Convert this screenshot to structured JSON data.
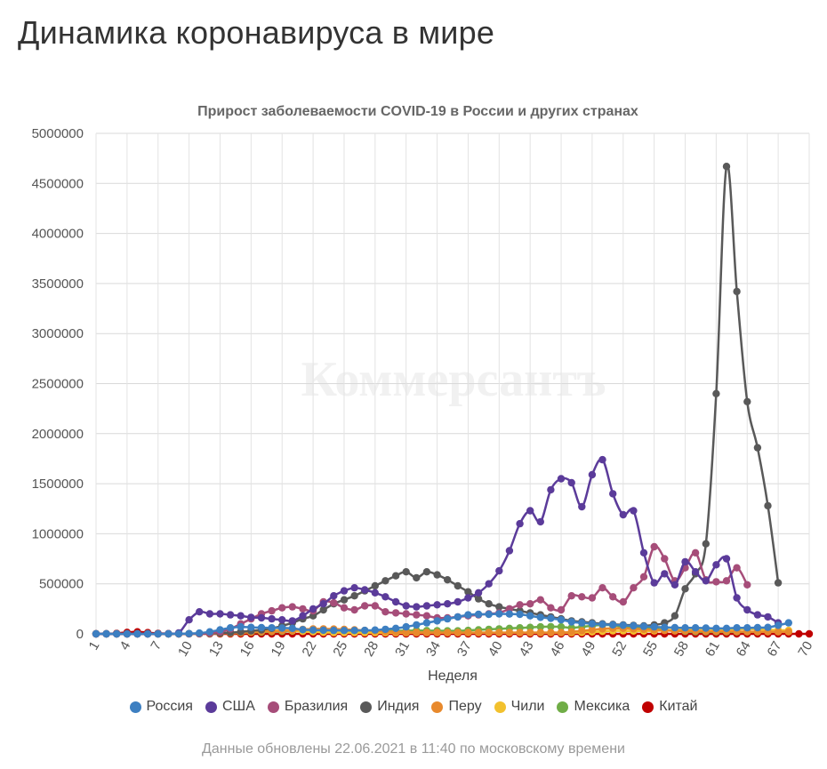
{
  "page": {
    "title": "Динамика коронавируса в мире",
    "footer": "Данные обновлены 22.06.2021 в 11:40 по московскому времени"
  },
  "watermark": "Коммерсантъ",
  "chart_data": {
    "type": "line",
    "title": "Прирост заболеваемости COVID-19 в России и других странах",
    "xlabel": "Неделя",
    "ylabel": "",
    "xlim": [
      1,
      70
    ],
    "ylim": [
      0,
      5000000
    ],
    "x_ticks": [
      1,
      4,
      7,
      10,
      13,
      16,
      19,
      22,
      25,
      28,
      31,
      34,
      37,
      40,
      43,
      46,
      49,
      52,
      55,
      58,
      61,
      64,
      67,
      70
    ],
    "y_ticks": [
      0,
      500000,
      1000000,
      1500000,
      2000000,
      2500000,
      3000000,
      3500000,
      4000000,
      4500000,
      5000000
    ],
    "grid": true,
    "legend_position": "bottom",
    "series": [
      {
        "name": "Китай",
        "color": "#c00000",
        "start": 1,
        "values": [
          0,
          1000,
          5000,
          15000,
          20000,
          12000,
          5000,
          3000,
          1500,
          800,
          500,
          400,
          300,
          300,
          200,
          200,
          200,
          200,
          200,
          200,
          200,
          200,
          200,
          200,
          200,
          200,
          200,
          200,
          200,
          200,
          200,
          200,
          200,
          200,
          200,
          200,
          200,
          200,
          200,
          200,
          200,
          200,
          200,
          200,
          200,
          200,
          200,
          200,
          200,
          200,
          200,
          200,
          200,
          200,
          200,
          200,
          200,
          200,
          200,
          200,
          200,
          200,
          200,
          200,
          200,
          200,
          200,
          200,
          200,
          200
        ]
      },
      {
        "name": "Мексика",
        "color": "#70ad47",
        "start": 1,
        "values": [
          0,
          0,
          0,
          0,
          0,
          0,
          0,
          0,
          0,
          500,
          1500,
          3000,
          6000,
          9000,
          12000,
          15000,
          18000,
          22000,
          25000,
          28000,
          30000,
          32000,
          34000,
          36000,
          36000,
          35000,
          33000,
          32000,
          30000,
          30000,
          32000,
          34000,
          33000,
          32000,
          30000,
          30000,
          35000,
          40000,
          45000,
          50000,
          55000,
          60000,
          65000,
          70000,
          72000,
          70000,
          60000,
          70000,
          80000,
          90000,
          85000,
          70000,
          60000,
          55000,
          50000,
          40000,
          30000,
          25000,
          22000,
          20000,
          20000,
          20000,
          20000,
          20000,
          20000,
          22000,
          24000,
          26000
        ]
      },
      {
        "name": "Чили",
        "color": "#f2c12e",
        "start": 1,
        "values": [
          0,
          0,
          0,
          0,
          0,
          0,
          0,
          0,
          0,
          500,
          1500,
          3000,
          5000,
          8000,
          12000,
          18000,
          25000,
          30000,
          35000,
          30000,
          25000,
          20000,
          15000,
          12000,
          12000,
          12000,
          12000,
          12000,
          12000,
          12000,
          12000,
          12000,
          12000,
          12000,
          12000,
          12000,
          12000,
          12000,
          12000,
          12000,
          12000,
          12000,
          12000,
          12000,
          12000,
          12000,
          12000,
          15000,
          20000,
          25000,
          30000,
          30000,
          28000,
          28000,
          30000,
          35000,
          40000,
          45000,
          50000,
          50000,
          45000,
          40000,
          45000,
          50000,
          45000,
          40000,
          38000,
          35000
        ]
      },
      {
        "name": "Перу",
        "color": "#e8892c",
        "start": 1,
        "values": [
          0,
          0,
          0,
          0,
          0,
          0,
          0,
          0,
          0,
          500,
          1500,
          3000,
          5000,
          8000,
          12000,
          18000,
          22000,
          25000,
          30000,
          35000,
          45000,
          50000,
          50000,
          48000,
          45000,
          40000,
          35000,
          30000,
          25000,
          20000,
          18000,
          15000,
          14000,
          13000,
          12000,
          12000,
          12000,
          12000,
          12000,
          12000,
          12000,
          12000,
          12000,
          12000,
          12000,
          12000,
          20000,
          30000,
          40000,
          50000,
          55000,
          55000,
          50000,
          45000,
          40000,
          35000,
          30000,
          30000,
          28000,
          26000,
          25000,
          24000,
          23000,
          22000,
          21000,
          20000,
          20000,
          20000
        ]
      },
      {
        "name": "Индия",
        "color": "#595959",
        "start": 1,
        "values": [
          0,
          0,
          0,
          0,
          0,
          0,
          0,
          0,
          100,
          500,
          1500,
          4000,
          8000,
          12000,
          20000,
          30000,
          40000,
          55000,
          80000,
          110000,
          150000,
          180000,
          240000,
          300000,
          340000,
          380000,
          430000,
          480000,
          530000,
          580000,
          620000,
          560000,
          620000,
          590000,
          540000,
          480000,
          420000,
          350000,
          300000,
          270000,
          250000,
          230000,
          210000,
          190000,
          170000,
          150000,
          130000,
          120000,
          110000,
          100000,
          95000,
          90000,
          85000,
          80000,
          90000,
          110000,
          180000,
          450000,
          600000,
          900000,
          2400000,
          4670000,
          3420000,
          2320000,
          1860000,
          1280000,
          510000
        ]
      },
      {
        "name": "Бразилия",
        "color": "#a64d79",
        "start": 1,
        "values": [
          0,
          0,
          0,
          0,
          0,
          0,
          0,
          0,
          0,
          1000,
          3000,
          8000,
          20000,
          50000,
          100000,
          150000,
          200000,
          230000,
          260000,
          270000,
          250000,
          230000,
          320000,
          310000,
          260000,
          240000,
          280000,
          280000,
          220000,
          210000,
          200000,
          190000,
          180000,
          160000,
          160000,
          170000,
          180000,
          190000,
          200000,
          210000,
          250000,
          290000,
          300000,
          340000,
          260000,
          240000,
          380000,
          370000,
          360000,
          460000,
          370000,
          320000,
          460000,
          570000,
          870000,
          750000,
          530000,
          660000,
          810000,
          540000,
          520000,
          530000,
          660000,
          490000
        ]
      },
      {
        "name": "США",
        "color": "#5b3b9a",
        "start": 1,
        "values": [
          0,
          0,
          0,
          0,
          0,
          0,
          500,
          2000,
          10000,
          140000,
          220000,
          200000,
          200000,
          190000,
          180000,
          165000,
          160000,
          150000,
          140000,
          130000,
          180000,
          250000,
          300000,
          380000,
          430000,
          460000,
          440000,
          410000,
          370000,
          320000,
          280000,
          270000,
          280000,
          290000,
          300000,
          320000,
          360000,
          410000,
          500000,
          630000,
          830000,
          1100000,
          1230000,
          1120000,
          1440000,
          1550000,
          1510000,
          1270000,
          1590000,
          1740000,
          1400000,
          1190000,
          1230000,
          810000,
          510000,
          600000,
          490000,
          720000,
          620000,
          530000,
          690000,
          750000,
          360000,
          240000,
          190000,
          170000,
          110000
        ]
      },
      {
        "name": "Россия",
        "color": "#3d7fc1",
        "start": 1,
        "values": [
          0,
          0,
          0,
          0,
          0,
          0,
          0,
          200,
          1000,
          3000,
          8000,
          20000,
          40000,
          60000,
          70000,
          65000,
          62000,
          60000,
          58000,
          55000,
          42000,
          38000,
          36000,
          35000,
          34000,
          34000,
          35000,
          38000,
          45000,
          55000,
          70000,
          90000,
          110000,
          130000,
          150000,
          170000,
          190000,
          195000,
          195000,
          200000,
          198000,
          195000,
          180000,
          165000,
          155000,
          140000,
          120000,
          110000,
          100000,
          95000,
          90000,
          85000,
          80000,
          75000,
          70000,
          65000,
          62000,
          60000,
          60000,
          58000,
          55000,
          55000,
          60000,
          60000,
          62000,
          65000,
          85000,
          110000
        ]
      }
    ]
  },
  "legend": [
    {
      "name": "Россия",
      "color": "#3d7fc1"
    },
    {
      "name": "США",
      "color": "#5b3b9a"
    },
    {
      "name": "Бразилия",
      "color": "#a64d79"
    },
    {
      "name": "Индия",
      "color": "#595959"
    },
    {
      "name": "Перу",
      "color": "#e8892c"
    },
    {
      "name": "Чили",
      "color": "#f2c12e"
    },
    {
      "name": "Мексика",
      "color": "#70ad47"
    },
    {
      "name": "Китай",
      "color": "#c00000"
    }
  ]
}
